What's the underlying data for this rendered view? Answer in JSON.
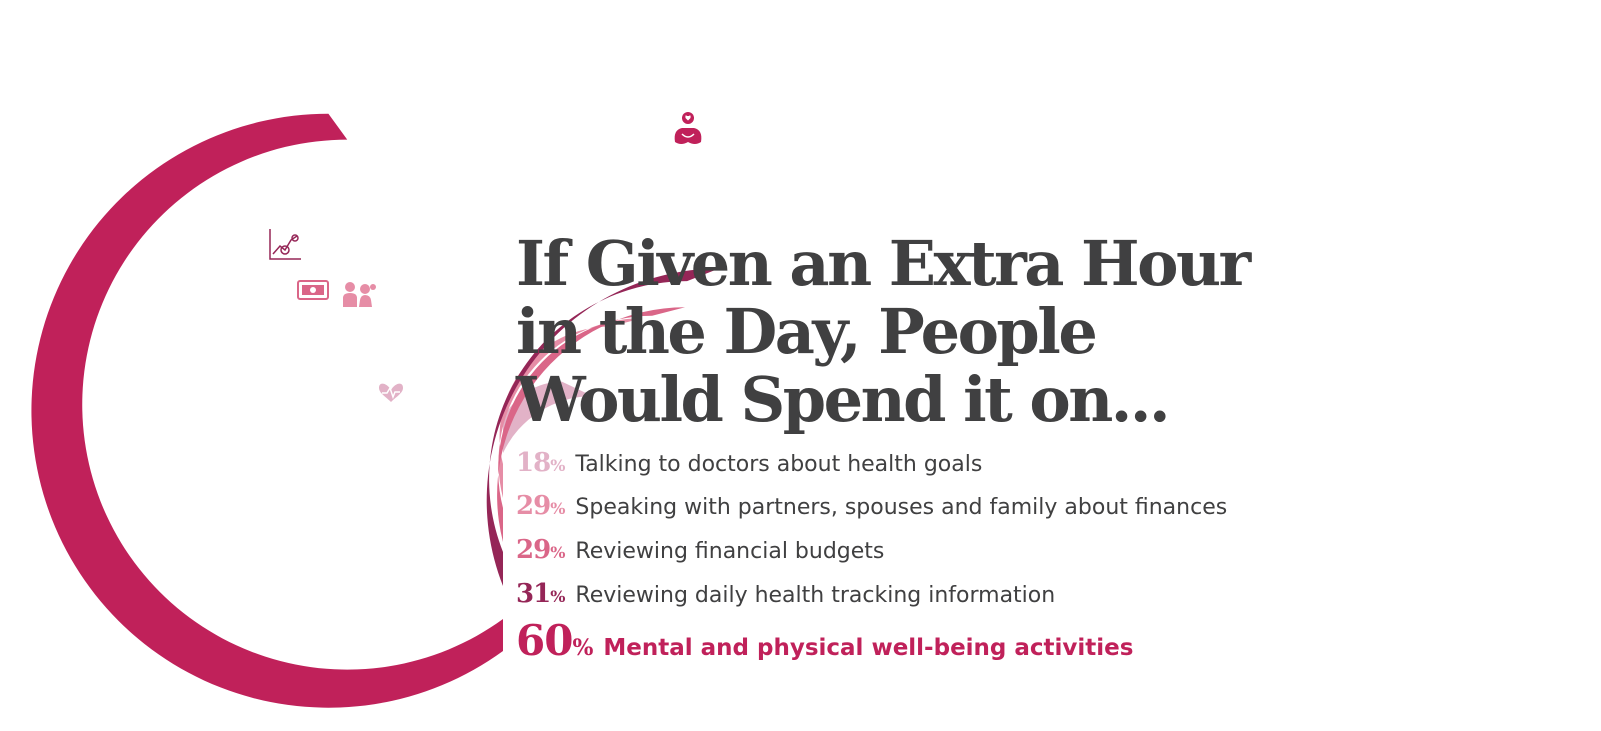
{
  "title_lines": [
    "If Given an Extra Hour",
    "in the Day, People",
    "Would Spend it on..."
  ],
  "chart_data": {
    "type": "bar",
    "layout": "radial",
    "title": "If Given an Extra Hour in the Day, People Would Spend it on...",
    "categories": [
      "Talking to doctors about health goals",
      "Speaking with partners, spouses and family about finances",
      "Reviewing financial budgets",
      "Reviewing daily health tracking information",
      "Mental and physical well-being activities"
    ],
    "values": [
      18,
      29,
      29,
      31,
      60
    ],
    "unit": "%",
    "value_labels": [
      "18",
      "29",
      "29",
      "31",
      "60"
    ],
    "colors": [
      "#e2b2c7",
      "#e68da6",
      "#da6688",
      "#952657",
      "#c0215a"
    ],
    "icons": [
      "heart-pulse-icon",
      "family-icon",
      "money-icon",
      "health-chart-icon",
      "meditation-icon"
    ],
    "legend": "none",
    "grid": false
  }
}
